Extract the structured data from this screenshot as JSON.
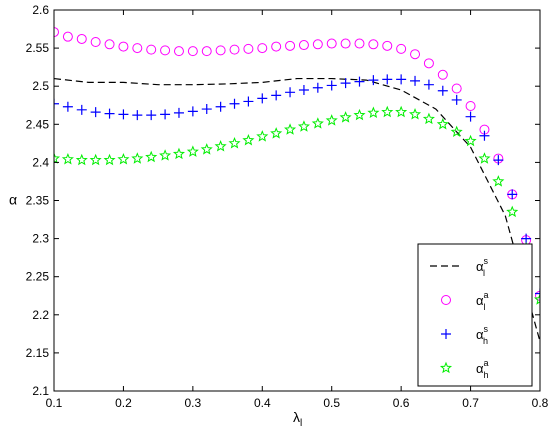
{
  "chart_data": {
    "type": "scatter",
    "title": "",
    "xlabel": "λl",
    "ylabel": "α",
    "xlim": [
      0.1,
      0.8
    ],
    "ylim": [
      2.1,
      2.6
    ],
    "xticks": [
      "0.1",
      "0.2",
      "0.3",
      "0.4",
      "0.5",
      "0.6",
      "0.7",
      "0.8"
    ],
    "yticks": [
      "2.1",
      "2.15",
      "2.2",
      "2.25",
      "2.3",
      "2.35",
      "2.4",
      "2.45",
      "2.5",
      "2.55",
      "2.6"
    ],
    "grid": false,
    "legend_position": "bottom-right",
    "series": [
      {
        "name": "αls",
        "name_base": "α",
        "name_sup": "s",
        "name_sub": "l",
        "style": "dashed-line",
        "color": "#000000",
        "x": [
          0.1,
          0.15,
          0.2,
          0.25,
          0.3,
          0.35,
          0.4,
          0.45,
          0.5,
          0.55,
          0.6,
          0.65,
          0.7,
          0.75,
          0.8
        ],
        "y": [
          2.51,
          2.505,
          2.505,
          2.502,
          2.502,
          2.503,
          2.505,
          2.51,
          2.51,
          2.508,
          2.495,
          2.47,
          2.42,
          2.33,
          2.165
        ]
      },
      {
        "name": "αla",
        "name_base": "α",
        "name_sup": "a",
        "name_sub": "l",
        "style": "circle",
        "color": "#ff00ff",
        "x": [
          0.1,
          0.12,
          0.14,
          0.16,
          0.18,
          0.2,
          0.22,
          0.24,
          0.26,
          0.28,
          0.3,
          0.32,
          0.34,
          0.36,
          0.38,
          0.4,
          0.42,
          0.44,
          0.46,
          0.48,
          0.5,
          0.52,
          0.54,
          0.56,
          0.58,
          0.6,
          0.62,
          0.64,
          0.66,
          0.68,
          0.7,
          0.72,
          0.74,
          0.76,
          0.78,
          0.8
        ],
        "y": [
          2.571,
          2.565,
          2.562,
          2.558,
          2.555,
          2.552,
          2.55,
          2.548,
          2.547,
          2.546,
          2.546,
          2.546,
          2.547,
          2.548,
          2.549,
          2.55,
          2.552,
          2.553,
          2.554,
          2.555,
          2.556,
          2.556,
          2.556,
          2.555,
          2.553,
          2.549,
          2.542,
          2.53,
          2.515,
          2.497,
          2.474,
          2.443,
          2.405,
          2.358,
          2.298,
          2.225
        ]
      },
      {
        "name": "αhs",
        "name_base": "α",
        "name_sup": "s",
        "name_sub": "h",
        "style": "plus",
        "color": "#0000ff",
        "x": [
          0.1,
          0.12,
          0.14,
          0.16,
          0.18,
          0.2,
          0.22,
          0.24,
          0.26,
          0.28,
          0.3,
          0.32,
          0.34,
          0.36,
          0.38,
          0.4,
          0.42,
          0.44,
          0.46,
          0.48,
          0.5,
          0.52,
          0.54,
          0.56,
          0.58,
          0.6,
          0.62,
          0.64,
          0.66,
          0.68,
          0.7,
          0.72,
          0.74,
          0.76,
          0.78,
          0.8
        ],
        "y": [
          2.477,
          2.473,
          2.469,
          2.466,
          2.464,
          2.463,
          2.462,
          2.462,
          2.463,
          2.465,
          2.467,
          2.47,
          2.473,
          2.477,
          2.48,
          2.484,
          2.488,
          2.492,
          2.495,
          2.498,
          2.501,
          2.504,
          2.506,
          2.508,
          2.509,
          2.509,
          2.507,
          2.502,
          2.494,
          2.482,
          2.46,
          2.435,
          2.403,
          2.358,
          2.3,
          2.228
        ]
      },
      {
        "name": "αha",
        "name_base": "α",
        "name_sup": "a",
        "name_sub": "h",
        "style": "star",
        "color": "#00ee00",
        "x": [
          0.1,
          0.12,
          0.14,
          0.16,
          0.18,
          0.2,
          0.22,
          0.24,
          0.26,
          0.28,
          0.3,
          0.32,
          0.34,
          0.36,
          0.38,
          0.4,
          0.42,
          0.44,
          0.46,
          0.48,
          0.5,
          0.52,
          0.54,
          0.56,
          0.58,
          0.6,
          0.62,
          0.64,
          0.66,
          0.68,
          0.7,
          0.72,
          0.74,
          0.76,
          0.78,
          0.8
        ],
        "y": [
          2.405,
          2.404,
          2.403,
          2.403,
          2.403,
          2.404,
          2.405,
          2.407,
          2.409,
          2.411,
          2.414,
          2.417,
          2.421,
          2.425,
          2.429,
          2.434,
          2.438,
          2.443,
          2.447,
          2.451,
          2.455,
          2.459,
          2.462,
          2.465,
          2.466,
          2.466,
          2.463,
          2.457,
          2.45,
          2.44,
          2.428,
          2.405,
          2.375,
          2.335,
          2.287,
          2.22
        ]
      }
    ]
  }
}
